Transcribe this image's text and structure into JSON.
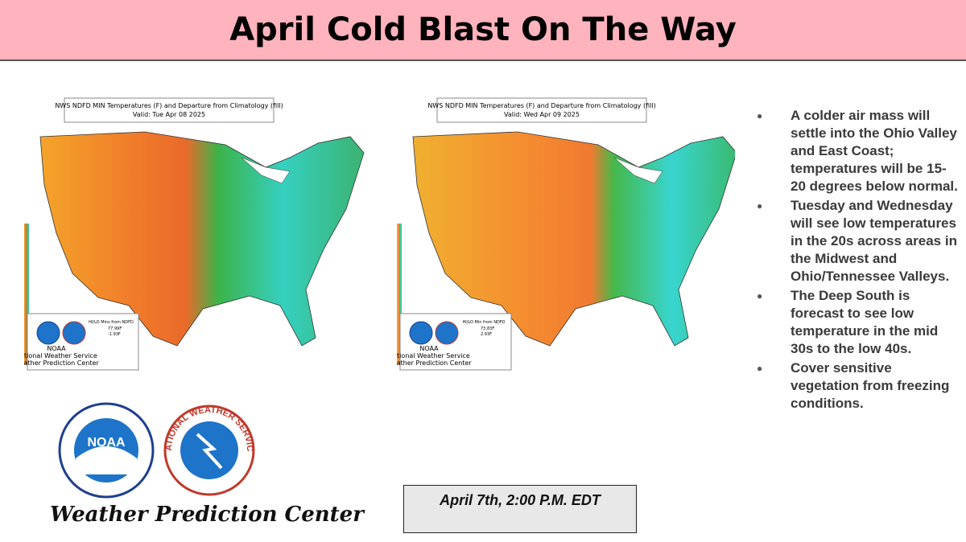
{
  "title": "April Cold Blast On The Way",
  "maps": [
    {
      "header": [
        "NWS NDFD MIN Temperatures (F) and Departure from Climatology (fill)",
        "Valid: Tue Apr 08 2025"
      ],
      "legend": {
        "agency": [
          "NOAA",
          "National Weather Service",
          "Weather Prediction Center"
        ],
        "extremes_title": "HI/LO Mins from NDFD",
        "high": "77.99F",
        "low": "-1.93F"
      }
    },
    {
      "header": [
        "NWS NDFD MIN Temperatures (F) and Departure from Climatology (fill)",
        "Valid: Wed Apr 09 2025"
      ],
      "legend": {
        "agency": [
          "NOAA",
          "National Weather Service",
          "Weather Prediction Center"
        ],
        "extremes_title": "HI/LO Min from NDFD",
        "high": "73.83F",
        "low": "2.93F"
      }
    }
  ],
  "bullets": [
    "A colder air mass will settle into the Ohio Valley and East Coast; temperatures will be 15-20 degrees below normal.",
    "Tuesday and Wednesday will see low temperatures in the 20s across areas in the Midwest and Ohio/Tennessee Valleys.",
    "The Deep South is forecast to see low temperature in the mid 30s to the low 40s.",
    "Cover sensitive vegetation from freezing conditions."
  ],
  "date": "April 7th, 2:00 P.M. EDT",
  "footer": {
    "org": "Weather Prediction Center",
    "noaa": "NOAA",
    "nws": "NATIONAL WEATHER SERVICE"
  }
}
